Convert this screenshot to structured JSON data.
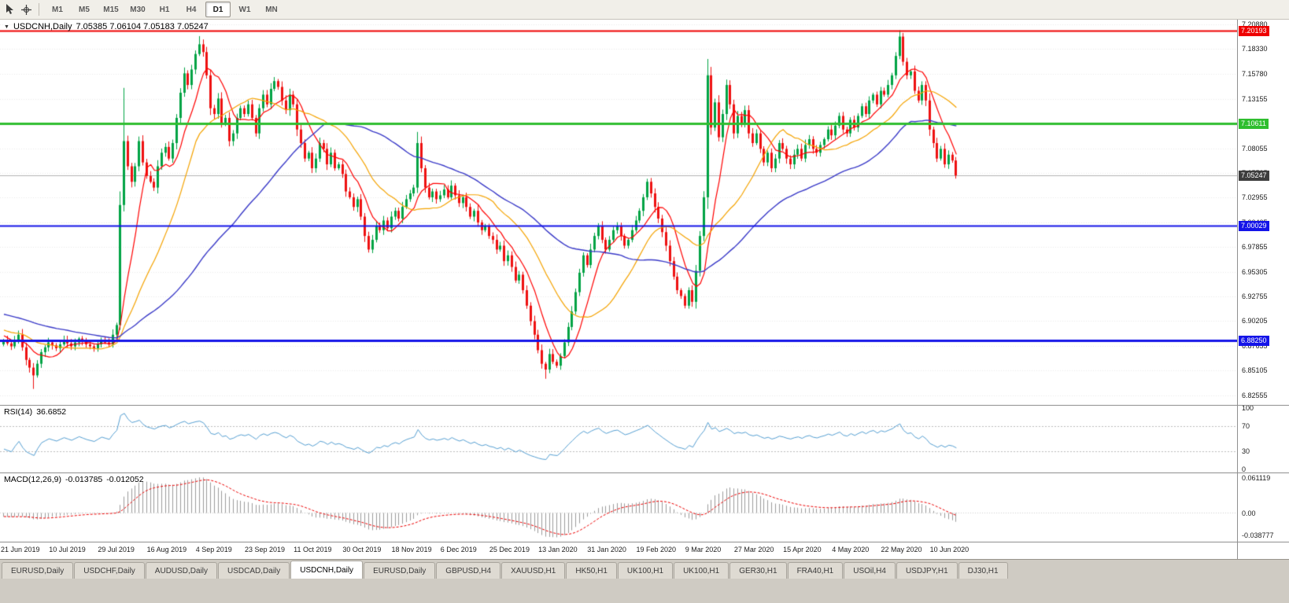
{
  "toolbar": {
    "timeframes": [
      "M1",
      "M5",
      "M15",
      "M30",
      "H1",
      "H4",
      "D1",
      "W1",
      "MN"
    ],
    "active_timeframe": "D1",
    "icons": [
      "cursor-icon",
      "crosshair-icon"
    ]
  },
  "chart_header": {
    "symbol": "USDCNH,Daily",
    "ohlc": "7.05385 7.06104 7.05183 7.05247"
  },
  "price_axis": {
    "labels": [
      "7.20880",
      "7.18330",
      "7.15780",
      "7.13155",
      "7.10605",
      "7.08055",
      "7.05505",
      "7.02955",
      "7.00405",
      "6.97855",
      "6.95305",
      "6.92755",
      "6.90205",
      "6.87655",
      "6.85105",
      "6.82555"
    ]
  },
  "levels": [
    {
      "price": 7.20193,
      "label": "7.20193",
      "color": "#ee0000",
      "width": 2
    },
    {
      "price": 7.10611,
      "label": "7.10611",
      "color": "#2fbe2f",
      "width": 3
    },
    {
      "price": 7.00029,
      "label": "7.00029",
      "color": "#1414e8",
      "width": 2
    },
    {
      "price": 6.8825,
      "label": "6.88250",
      "color": "#1414e8",
      "width": 3
    }
  ],
  "current_price": {
    "value": 7.05247,
    "label": "7.05247",
    "badge_color": "#3d3d3d",
    "line_color": "#b4b4b4"
  },
  "panels": {
    "rsi": {
      "name": "RSI(14)",
      "value": "36.6852",
      "axis": [
        "100",
        "70",
        "30",
        "0"
      ],
      "upper_level": 70,
      "lower_level": 30,
      "line_color": "#56a0d3"
    },
    "macd": {
      "name": "MACD(12,26,9)",
      "macd_value": "-0.013785",
      "signal_value": "-0.012052",
      "axis_top": "0.061119",
      "axis_zero": "0.00",
      "axis_bottom": "-0.038777",
      "hist_color": "#9b9b9b",
      "signal_color": "#ee0000"
    }
  },
  "date_axis": {
    "labels": [
      "21 Jun 2019",
      "10 Jul 2019",
      "29 Jul 2019",
      "16 Aug 2019",
      "4 Sep 2019",
      "23 Sep 2019",
      "11 Oct 2019",
      "30 Oct 2019",
      "18 Nov 2019",
      "6 Dec 2019",
      "25 Dec 2019",
      "13 Jan 2020",
      "31 Jan 2020",
      "19 Feb 2020",
      "9 Mar 2020",
      "27 Mar 2020",
      "15 Apr 2020",
      "4 May 2020",
      "22 May 2020",
      "10 Jun 2020"
    ],
    "bars_per_label": 13
  },
  "tabs": {
    "items": [
      {
        "label": "EURUSD,Daily"
      },
      {
        "label": "USDCHF,Daily"
      },
      {
        "label": "AUDUSD,Daily"
      },
      {
        "label": "USDCAD,Daily"
      },
      {
        "label": "USDCNH,Daily"
      },
      {
        "label": "EURUSD,Daily"
      },
      {
        "label": "GBPUSD,H4"
      },
      {
        "label": "XAUUSD,H1"
      },
      {
        "label": "HK50,H1"
      },
      {
        "label": "UK100,H1"
      },
      {
        "label": "UK100,H1"
      },
      {
        "label": "GER30,H1"
      },
      {
        "label": "FRA40,H1"
      },
      {
        "label": "USOil,H4"
      },
      {
        "label": "USDJPY,H1"
      },
      {
        "label": "DJ30,H1"
      }
    ],
    "active_index": 4
  },
  "colors": {
    "candle_up": "#00a344",
    "candle_down": "#ee1111",
    "ma_fast": "#ff0000",
    "ma_mid": "#f5a300",
    "ma_slow": "#3a3ac8",
    "grid": "#ebebeb",
    "panel_level_dash": "#bdbdbd"
  },
  "chart_data": {
    "type": "candlestick",
    "title": "USDCNH Daily with RSI(14) and MACD(12,26,9)",
    "symbol": "USDCNH",
    "timeframe": "Daily",
    "bars": 254,
    "price_range": [
      6.8155,
      7.2135
    ],
    "moving_averages": [
      {
        "period": 8,
        "color_key": "ma_fast",
        "width": 1.2
      },
      {
        "period": 21,
        "color_key": "ma_mid",
        "width": 1.2
      },
      {
        "period": 55,
        "color_key": "ma_slow",
        "width": 1.4
      }
    ],
    "indicators": {
      "rsi": {
        "period": 14,
        "last_value": 36.6852
      },
      "macd": {
        "fast": 12,
        "slow": 26,
        "signal": 9,
        "last_macd": -0.013785,
        "last_signal": -0.012052
      }
    },
    "pre_history": {
      "bars": 60,
      "start": 6.94,
      "end": 6.885
    },
    "wick_overrides": [
      {
        "bar": 8,
        "low": 6.832
      },
      {
        "bar": 31,
        "low": 6.893
      },
      {
        "bar": 32,
        "high": 7.143
      },
      {
        "bar": 52,
        "high": 7.1965
      },
      {
        "bar": 110,
        "high": 7.0975
      },
      {
        "bar": 144,
        "low": 6.8425
      },
      {
        "bar": 187,
        "low": 7.018
      },
      {
        "bar": 238,
        "high": 7.2025
      }
    ],
    "close_keyframes": [
      [
        0,
        6.882
      ],
      [
        2,
        6.876
      ],
      [
        4,
        6.888
      ],
      [
        6,
        6.862
      ],
      [
        8,
        6.846
      ],
      [
        10,
        6.87
      ],
      [
        12,
        6.88
      ],
      [
        14,
        6.874
      ],
      [
        16,
        6.882
      ],
      [
        18,
        6.876
      ],
      [
        20,
        6.884
      ],
      [
        22,
        6.878
      ],
      [
        24,
        6.874
      ],
      [
        26,
        6.882
      ],
      [
        28,
        6.878
      ],
      [
        30,
        6.898
      ],
      [
        31,
        7.022
      ],
      [
        32,
        7.088
      ],
      [
        33,
        7.062
      ],
      [
        34,
        7.046
      ],
      [
        35,
        7.062
      ],
      [
        36,
        7.088
      ],
      [
        37,
        7.066
      ],
      [
        38,
        7.052
      ],
      [
        39,
        7.046
      ],
      [
        40,
        7.04
      ],
      [
        41,
        7.062
      ],
      [
        42,
        7.076
      ],
      [
        43,
        7.082
      ],
      [
        44,
        7.07
      ],
      [
        45,
        7.086
      ],
      [
        46,
        7.112
      ],
      [
        47,
        7.138
      ],
      [
        48,
        7.158
      ],
      [
        49,
        7.146
      ],
      [
        50,
        7.162
      ],
      [
        51,
        7.178
      ],
      [
        52,
        7.188
      ],
      [
        53,
        7.18
      ],
      [
        54,
        7.156
      ],
      [
        55,
        7.122
      ],
      [
        56,
        7.116
      ],
      [
        57,
        7.132
      ],
      [
        58,
        7.106
      ],
      [
        59,
        7.112
      ],
      [
        60,
        7.088
      ],
      [
        61,
        7.096
      ],
      [
        62,
        7.112
      ],
      [
        63,
        7.122
      ],
      [
        64,
        7.116
      ],
      [
        65,
        7.126
      ],
      [
        66,
        7.112
      ],
      [
        67,
        7.096
      ],
      [
        68,
        7.122
      ],
      [
        69,
        7.136
      ],
      [
        70,
        7.126
      ],
      [
        71,
        7.142
      ],
      [
        72,
        7.15
      ],
      [
        73,
        7.144
      ],
      [
        74,
        7.13
      ],
      [
        75,
        7.12
      ],
      [
        76,
        7.136
      ],
      [
        77,
        7.126
      ],
      [
        78,
        7.1
      ],
      [
        79,
        7.086
      ],
      [
        80,
        7.07
      ],
      [
        81,
        7.076
      ],
      [
        82,
        7.06
      ],
      [
        83,
        7.07
      ],
      [
        84,
        7.086
      ],
      [
        85,
        7.08
      ],
      [
        86,
        7.064
      ],
      [
        87,
        7.076
      ],
      [
        88,
        7.06
      ],
      [
        89,
        7.064
      ],
      [
        90,
        7.054
      ],
      [
        91,
        7.036
      ],
      [
        92,
        7.03
      ],
      [
        93,
        7.02
      ],
      [
        94,
        7.028
      ],
      [
        95,
        7.01
      ],
      [
        96,
        6.99
      ],
      [
        97,
        6.976
      ],
      [
        98,
        6.986
      ],
      [
        99,
        7.0
      ],
      [
        100,
        6.996
      ],
      [
        101,
        7.006
      ],
      [
        102,
        6.998
      ],
      [
        103,
        7.01
      ],
      [
        104,
        7.016
      ],
      [
        105,
        7.008
      ],
      [
        106,
        7.02
      ],
      [
        107,
        7.028
      ],
      [
        108,
        7.034
      ],
      [
        109,
        7.04
      ],
      [
        110,
        7.086
      ],
      [
        111,
        7.06
      ],
      [
        112,
        7.04
      ],
      [
        113,
        7.03
      ],
      [
        114,
        7.036
      ],
      [
        115,
        7.028
      ],
      [
        116,
        7.032
      ],
      [
        117,
        7.038
      ],
      [
        118,
        7.03
      ],
      [
        119,
        7.042
      ],
      [
        120,
        7.032
      ],
      [
        121,
        7.024
      ],
      [
        122,
        7.03
      ],
      [
        123,
        7.02
      ],
      [
        124,
        7.01
      ],
      [
        125,
        7.016
      ],
      [
        126,
        7.004
      ],
      [
        127,
        6.996
      ],
      [
        128,
        7.0
      ],
      [
        129,
        6.99
      ],
      [
        130,
        6.986
      ],
      [
        131,
        6.976
      ],
      [
        132,
        6.98
      ],
      [
        133,
        6.964
      ],
      [
        134,
        6.97
      ],
      [
        135,
        6.958
      ],
      [
        136,
        6.944
      ],
      [
        137,
        6.95
      ],
      [
        138,
        6.934
      ],
      [
        139,
        6.918
      ],
      [
        140,
        6.902
      ],
      [
        141,
        6.888
      ],
      [
        142,
        6.872
      ],
      [
        143,
        6.858
      ],
      [
        144,
        6.852
      ],
      [
        145,
        6.868
      ],
      [
        146,
        6.86
      ],
      [
        147,
        6.856
      ],
      [
        148,
        6.866
      ],
      [
        149,
        6.88
      ],
      [
        150,
        6.896
      ],
      [
        151,
        6.912
      ],
      [
        152,
        6.932
      ],
      [
        153,
        6.952
      ],
      [
        154,
        6.97
      ],
      [
        155,
        6.96
      ],
      [
        156,
        6.976
      ],
      [
        157,
        6.99
      ],
      [
        158,
        7.0
      ],
      [
        159,
        6.986
      ],
      [
        160,
        6.976
      ],
      [
        161,
        6.986
      ],
      [
        162,
        6.996
      ],
      [
        163,
        7.0
      ],
      [
        164,
        6.99
      ],
      [
        165,
        6.98
      ],
      [
        166,
        6.986
      ],
      [
        167,
        6.996
      ],
      [
        168,
        7.006
      ],
      [
        169,
        7.016
      ],
      [
        170,
        7.03
      ],
      [
        171,
        7.046
      ],
      [
        172,
        7.034
      ],
      [
        173,
        7.02
      ],
      [
        174,
        7.008
      ],
      [
        175,
        6.994
      ],
      [
        176,
        6.98
      ],
      [
        177,
        6.964
      ],
      [
        178,
        6.948
      ],
      [
        179,
        6.934
      ],
      [
        180,
        6.928
      ],
      [
        181,
        6.918
      ],
      [
        182,
        6.934
      ],
      [
        183,
        6.922
      ],
      [
        184,
        6.954
      ],
      [
        185,
        6.99
      ],
      [
        186,
        7.03
      ],
      [
        187,
        7.156
      ],
      [
        188,
        7.102
      ],
      [
        189,
        7.128
      ],
      [
        190,
        7.092
      ],
      [
        191,
        7.116
      ],
      [
        192,
        7.146
      ],
      [
        193,
        7.126
      ],
      [
        194,
        7.096
      ],
      [
        195,
        7.114
      ],
      [
        196,
        7.106
      ],
      [
        197,
        7.12
      ],
      [
        198,
        7.096
      ],
      [
        199,
        7.086
      ],
      [
        200,
        7.096
      ],
      [
        201,
        7.08
      ],
      [
        202,
        7.066
      ],
      [
        203,
        7.076
      ],
      [
        204,
        7.06
      ],
      [
        205,
        7.07
      ],
      [
        206,
        7.086
      ],
      [
        207,
        7.08
      ],
      [
        208,
        7.07
      ],
      [
        209,
        7.064
      ],
      [
        210,
        7.074
      ],
      [
        211,
        7.08
      ],
      [
        212,
        7.07
      ],
      [
        213,
        7.084
      ],
      [
        214,
        7.09
      ],
      [
        215,
        7.08
      ],
      [
        216,
        7.076
      ],
      [
        217,
        7.084
      ],
      [
        218,
        7.09
      ],
      [
        219,
        7.1
      ],
      [
        220,
        7.094
      ],
      [
        221,
        7.104
      ],
      [
        222,
        7.114
      ],
      [
        223,
        7.1
      ],
      [
        224,
        7.096
      ],
      [
        225,
        7.11
      ],
      [
        226,
        7.102
      ],
      [
        227,
        7.114
      ],
      [
        228,
        7.124
      ],
      [
        229,
        7.116
      ],
      [
        230,
        7.13
      ],
      [
        231,
        7.136
      ],
      [
        232,
        7.126
      ],
      [
        233,
        7.14
      ],
      [
        234,
        7.136
      ],
      [
        235,
        7.146
      ],
      [
        236,
        7.156
      ],
      [
        237,
        7.176
      ],
      [
        238,
        7.196
      ],
      [
        239,
        7.17
      ],
      [
        240,
        7.156
      ],
      [
        241,
        7.16
      ],
      [
        242,
        7.14
      ],
      [
        243,
        7.13
      ],
      [
        244,
        7.146
      ],
      [
        245,
        7.13
      ],
      [
        246,
        7.1
      ],
      [
        247,
        7.086
      ],
      [
        248,
        7.07
      ],
      [
        249,
        7.08
      ],
      [
        250,
        7.064
      ],
      [
        251,
        7.074
      ],
      [
        252,
        7.068
      ],
      [
        253,
        7.0525
      ]
    ]
  }
}
